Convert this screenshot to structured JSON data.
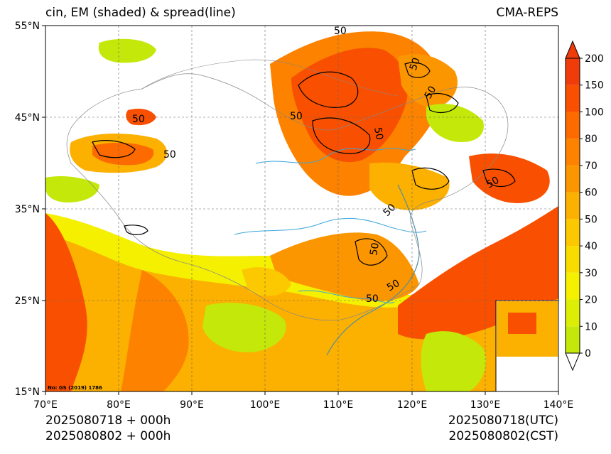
{
  "title_left": "cin, EM (shaded) & spread(line)",
  "title_right": "CMA-REPS",
  "footer": {
    "left_line1": "2025080718  +  000h",
    "left_line2": "2025080802  +  000h",
    "right_line1": "2025080718(UTC)",
    "right_line2": "2025080802(CST)"
  },
  "map_note": "No: GS (2019) 1786",
  "axes": {
    "lon_labels": [
      "70°E",
      "80°E",
      "90°E",
      "100°E",
      "110°E",
      "120°E",
      "130°E",
      "140°E"
    ],
    "lat_labels": [
      "55°N",
      "45°N",
      "35°N",
      "25°N",
      "15°N"
    ]
  },
  "colorbar": {
    "labels": [
      "0",
      "10",
      "20",
      "30",
      "40",
      "50",
      "60",
      "70",
      "80",
      "100",
      "150",
      "200"
    ],
    "colors": [
      "#c4e80a",
      "#dcee05",
      "#f4f000",
      "#f8dc00",
      "#fcc800",
      "#fcb000",
      "#fc9600",
      "#fc8200",
      "#fc6a00",
      "#f85000",
      "#f03c0a"
    ]
  },
  "contour_labels": [
    "50",
    "50",
    "50",
    "50",
    "50",
    "50",
    "50",
    "50",
    "50",
    "50",
    "50",
    "50"
  ],
  "colors": {
    "grid": "#666666",
    "river": "#3aa6dc",
    "border": "#888888",
    "contour": "#000000"
  }
}
